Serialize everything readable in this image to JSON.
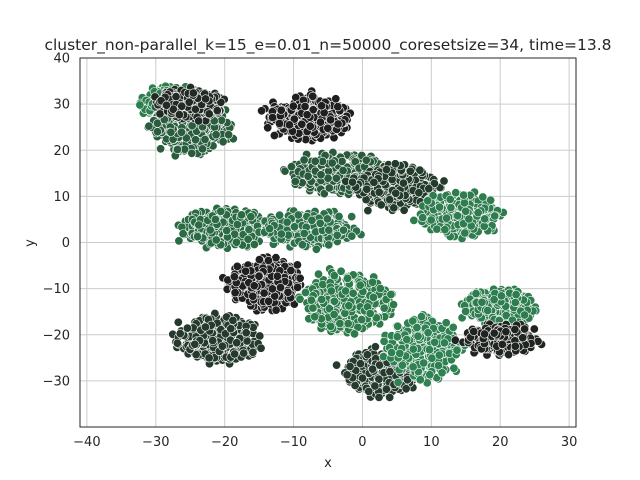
{
  "chart_data": {
    "type": "scatter",
    "title": "cluster_non-parallel_k=15_e=0.01_n=50000_coresetsize=34, time=13.8",
    "xlabel": "x",
    "ylabel": "y",
    "xlim": [
      -41,
      31
    ],
    "ylim": [
      -40,
      40
    ],
    "xticks": [
      -40,
      -30,
      -20,
      -10,
      0,
      10,
      20,
      30
    ],
    "yticks": [
      -30,
      -20,
      -10,
      0,
      10,
      20,
      30,
      40
    ],
    "grid": true,
    "legend": "none",
    "marker_edge_color": "#ffffff",
    "clusters": [
      {
        "center": [
          -27,
          30
        ],
        "spread": [
          4.5,
          3.5
        ],
        "color": "#2e7d4f"
      },
      {
        "center": [
          -25,
          25
        ],
        "spread": [
          5.5,
          5.5
        ],
        "color": "#2a5d3e"
      },
      {
        "center": [
          -25,
          30
        ],
        "spread": [
          4.5,
          3.0
        ],
        "color": "#222a24"
      },
      {
        "center": [
          -8,
          27
        ],
        "spread": [
          5.5,
          4.5
        ],
        "color": "#1f1f1f"
      },
      {
        "center": [
          -3,
          15
        ],
        "spread": [
          7.0,
          4.0
        ],
        "color": "#2a5a3c"
      },
      {
        "center": [
          5,
          12
        ],
        "spread": [
          5.5,
          4.5
        ],
        "color": "#233b2b"
      },
      {
        "center": [
          14,
          6
        ],
        "spread": [
          5.5,
          4.5
        ],
        "color": "#2f7d4e"
      },
      {
        "center": [
          -20,
          3
        ],
        "spread": [
          6.0,
          4.0
        ],
        "color": "#2a6b44"
      },
      {
        "center": [
          -8,
          3
        ],
        "spread": [
          6.5,
          3.5
        ],
        "color": "#2c704a"
      },
      {
        "center": [
          -14,
          -9
        ],
        "spread": [
          5.0,
          5.0
        ],
        "color": "#202020"
      },
      {
        "center": [
          -21,
          -21
        ],
        "spread": [
          6.0,
          5.0
        ],
        "color": "#253a2c"
      },
      {
        "center": [
          -2,
          -13
        ],
        "spread": [
          6.0,
          6.0
        ],
        "color": "#2d7a4b"
      },
      {
        "center": [
          3,
          -28
        ],
        "spread": [
          5.0,
          5.0
        ],
        "color": "#263b2d"
      },
      {
        "center": [
          9,
          -23
        ],
        "spread": [
          5.0,
          6.5
        ],
        "color": "#2f8152"
      },
      {
        "center": [
          20,
          -14
        ],
        "spread": [
          5.0,
          3.5
        ],
        "color": "#2e7d4f"
      },
      {
        "center": [
          20,
          -21
        ],
        "spread": [
          5.0,
          3.0
        ],
        "color": "#1f2420"
      }
    ]
  }
}
